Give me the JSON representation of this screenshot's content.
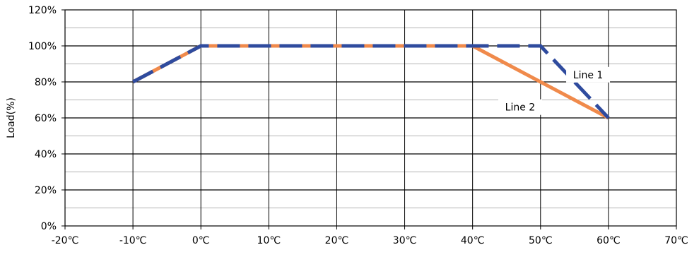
{
  "chart_data": {
    "type": "line",
    "title": "",
    "xlabel": "",
    "ylabel": "Load(%)",
    "xlim": [
      -20,
      70
    ],
    "ylim": [
      0,
      120
    ],
    "x_ticks": [
      -20,
      -10,
      0,
      10,
      20,
      30,
      40,
      50,
      60,
      70
    ],
    "x_tick_labels": [
      "-20℃",
      "-10℃",
      "0℃",
      "10℃",
      "20℃",
      "30℃",
      "40℃",
      "50℃",
      "60℃",
      "70℃"
    ],
    "y_ticks": [
      0,
      20,
      40,
      60,
      80,
      100,
      120
    ],
    "y_tick_labels": [
      "0%",
      "20%",
      "40%",
      "60%",
      "80%",
      "100%",
      "120%"
    ],
    "grid": true,
    "legend": "none",
    "series": [
      {
        "name": "Line 1",
        "color": "#2f4b9e",
        "style": "dashed",
        "x": [
          -10,
          0,
          50,
          60
        ],
        "y": [
          80,
          100,
          100,
          60
        ]
      },
      {
        "name": "Line 2",
        "color": "#f08a4b",
        "style": "solid",
        "x": [
          -10,
          0,
          40,
          60
        ],
        "y": [
          80,
          100,
          100,
          60
        ]
      }
    ],
    "annotations": [
      {
        "text": "Line 1",
        "x": 57,
        "y": 84
      },
      {
        "text": "Line 2",
        "x": 47,
        "y": 66
      }
    ]
  }
}
